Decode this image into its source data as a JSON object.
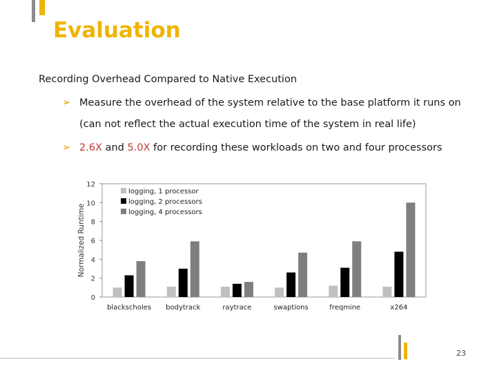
{
  "slide": {
    "title": "Evaluation",
    "subtitle": "Recording Overhead Compared to Native Execution",
    "bullet1_line1": "Measure the overhead of the system relative to the base platform it runs on",
    "bullet1_line2": "(can not reflect the actual execution time of the system in real life)",
    "bullet2_v1": "2.6X",
    "bullet2_and": " and ",
    "bullet2_v2": "5.0X",
    "bullet2_rest": " for recording these workloads on two and four processors",
    "page_number": "23",
    "arrow_icon": "arrow-right-icon"
  },
  "colors": {
    "accent": "#f0b400",
    "highlight": "#c0392b"
  },
  "chart_data": {
    "type": "bar",
    "title": "",
    "xlabel": "",
    "ylabel": "Normalized Runtime",
    "ylim": [
      0,
      12
    ],
    "yticks": [
      0,
      2,
      4,
      6,
      8,
      10,
      12
    ],
    "categories": [
      "blackscholes",
      "bodytrack",
      "raytrace",
      "swaptions",
      "freqmine",
      "x264"
    ],
    "series": [
      {
        "name": "logging, 1 processor",
        "color": "#c0c0c0",
        "values": [
          1.0,
          1.1,
          1.1,
          1.0,
          1.2,
          1.1
        ]
      },
      {
        "name": "logging, 2 processors",
        "color": "#000000",
        "values": [
          2.3,
          3.0,
          1.4,
          2.6,
          3.1,
          4.8
        ]
      },
      {
        "name": "logging, 4 processors",
        "color": "#7f7f7f",
        "values": [
          3.8,
          5.9,
          1.6,
          4.7,
          5.9,
          10.0
        ]
      }
    ],
    "legend_position": "top-left"
  }
}
